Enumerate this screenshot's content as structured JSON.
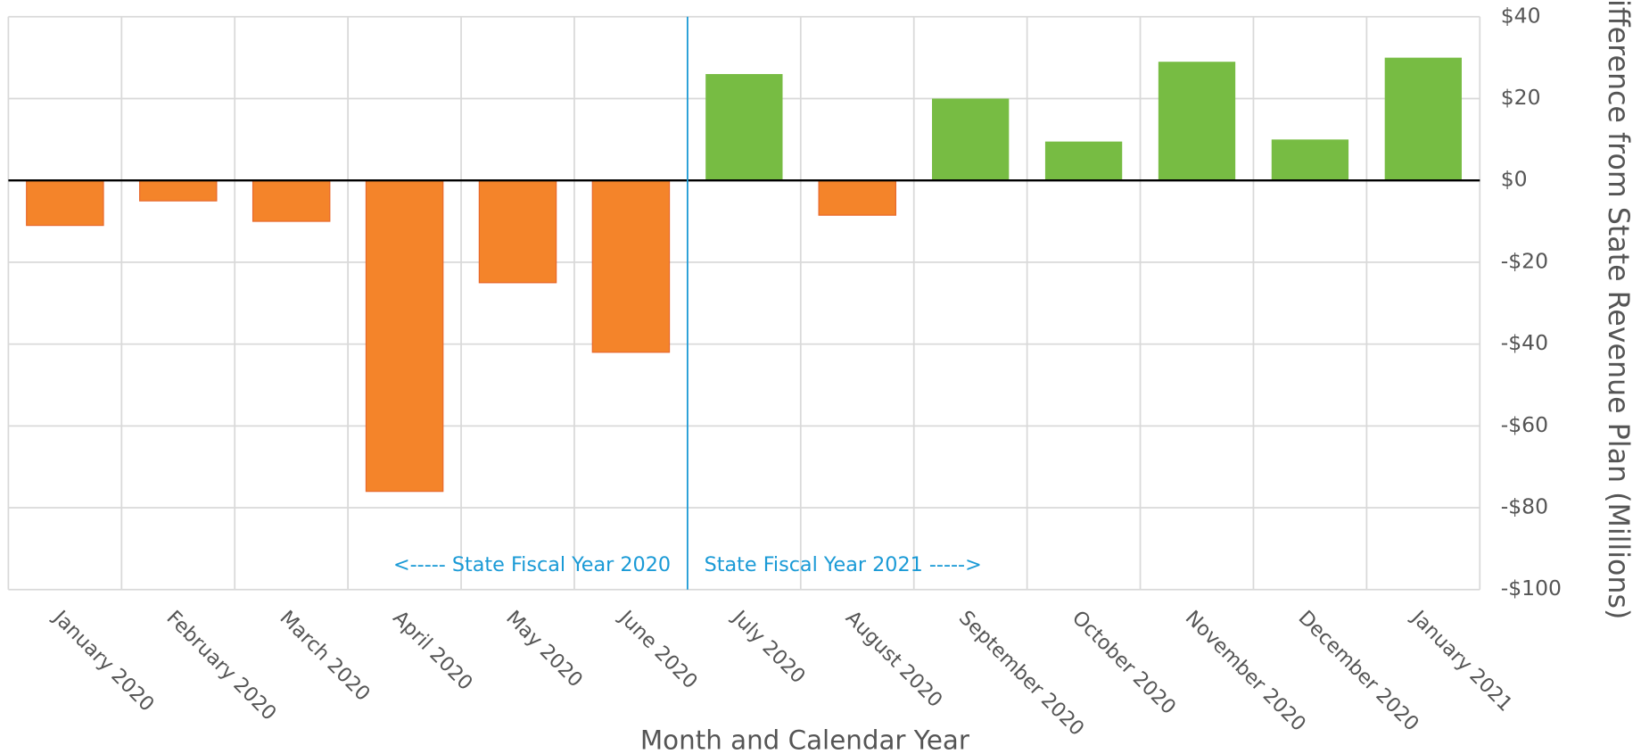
{
  "chart_data": {
    "type": "bar",
    "categories": [
      "January 2020",
      "February 2020",
      "March 2020",
      "April 2020",
      "May 2020",
      "June 2020",
      "July 2020",
      "August 2020",
      "September 2020",
      "October 2020",
      "November 2020",
      "December 2020",
      "January 2021"
    ],
    "values": [
      -11,
      -5,
      -10,
      -76,
      -25,
      -42,
      26,
      -8.5,
      20,
      9.5,
      29,
      10,
      30
    ],
    "colors": [
      "#f4842a",
      "#f4842a",
      "#f4842a",
      "#f4842a",
      "#f4842a",
      "#f4842a",
      "#77bc43",
      "#f4842a",
      "#77bc43",
      "#77bc43",
      "#77bc43",
      "#77bc43",
      "#77bc43"
    ],
    "x_label": "Month and Calendar Year",
    "y_label": "Difference from State Revenue Plan (Millions)",
    "ylim": [
      -100,
      40
    ],
    "yticks": [
      {
        "value": -100,
        "label": "-$100"
      },
      {
        "value": -80,
        "label": "-$80"
      },
      {
        "value": -60,
        "label": "-$60"
      },
      {
        "value": -40,
        "label": "-$40"
      },
      {
        "value": -20,
        "label": "-$20"
      },
      {
        "value": 0,
        "label": "$0"
      },
      {
        "value": 20,
        "label": "$20"
      },
      {
        "value": 40,
        "label": "$40"
      }
    ],
    "y_axis_side": "right",
    "grid": true,
    "annotations": [
      "<----- State Fiscal Year 2020",
      "State Fiscal Year 2021 ----->"
    ],
    "annotation_color": "#1a9ad6"
  }
}
